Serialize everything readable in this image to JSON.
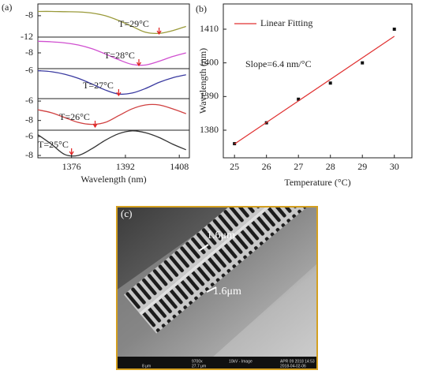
{
  "chart_data": [
    {
      "type": "line",
      "panel_label": "(a)",
      "annotation": "T=29°C",
      "x": [
        1366,
        1370,
        1374,
        1378,
        1382,
        1386,
        1390,
        1394,
        1398,
        1402,
        1406,
        1410
      ],
      "series": [
        {
          "color": "#9a9a3a",
          "values": [
            -7.2,
            -7.2,
            -7.25,
            -7.3,
            -7.5,
            -8.0,
            -8.9,
            -10.0,
            -11.1,
            -11.3,
            -10.8,
            -10.0
          ]
        }
      ],
      "marker_x": 1402,
      "ylim": [
        -12,
        -5.8
      ],
      "yticks": [
        -8,
        -12
      ]
    },
    {
      "type": "line",
      "annotation": "T=28°C",
      "x": [
        1366,
        1370,
        1374,
        1378,
        1382,
        1386,
        1390,
        1394,
        1398,
        1402,
        1406,
        1410
      ],
      "series": [
        {
          "color": "#d050d0",
          "values": [
            -5.8,
            -5.9,
            -6.1,
            -6.5,
            -7.2,
            -8.2,
            -9.3,
            -10.2,
            -10.3,
            -9.6,
            -8.7,
            -8.0
          ]
        }
      ],
      "marker_x": 1396,
      "ylim": [
        -11,
        -5
      ],
      "yticks": [
        -8
      ]
    },
    {
      "type": "line",
      "annotation": "T=27°C",
      "x": [
        1366,
        1370,
        1374,
        1378,
        1382,
        1386,
        1390,
        1394,
        1398,
        1402,
        1406,
        1410
      ],
      "series": [
        {
          "color": "#3a3aa0",
          "values": [
            -6.0,
            -6.2,
            -6.7,
            -7.5,
            -8.6,
            -9.8,
            -10.6,
            -10.4,
            -9.5,
            -8.3,
            -7.4,
            -6.8
          ]
        }
      ],
      "marker_x": 1390,
      "ylim": [
        -11.5,
        -5.6
      ],
      "yticks": [
        -6
      ]
    },
    {
      "type": "line",
      "annotation": "T=26°C",
      "x": [
        1366,
        1370,
        1374,
        1378,
        1382,
        1386,
        1390,
        1394,
        1398,
        1402,
        1406,
        1410
      ],
      "series": [
        {
          "color": "#d04040",
          "values": [
            -6.9,
            -7.2,
            -7.7,
            -8.2,
            -8.4,
            -8.2,
            -7.5,
            -6.8,
            -6.4,
            -6.4,
            -6.8,
            -7.3
          ]
        }
      ],
      "marker_x": 1383,
      "ylim": [
        -9,
        -5.75
      ],
      "yticks": [
        -6,
        -8
      ]
    },
    {
      "type": "line",
      "annotation": "T=25°C",
      "x": [
        1366,
        1370,
        1374,
        1378,
        1382,
        1386,
        1390,
        1394,
        1398,
        1402,
        1406,
        1410
      ],
      "series": [
        {
          "color": "#333333",
          "values": [
            -5.8,
            -6.8,
            -7.9,
            -8.0,
            -7.3,
            -6.4,
            -5.7,
            -5.4,
            -5.6,
            -6.1,
            -6.8,
            -7.4
          ]
        }
      ],
      "marker_x": 1376,
      "ylim": [
        -8.25,
        -5.33
      ],
      "yticks": [
        -6,
        -8
      ],
      "xlim": [
        1366,
        1411
      ],
      "xticks": [
        1376,
        1392,
        1408
      ],
      "x_label": "Wavelength (nm)"
    },
    {
      "type": "scatter",
      "panel_label": "(b)",
      "x_label": "Temperature (°C)",
      "y_label": "Wavelength (nm)",
      "annotation": "Slope=6.4 nm/°C",
      "legend": "upper left",
      "series": [
        {
          "color": "#111111",
          "x": [
            25,
            26,
            27,
            28,
            29,
            30
          ],
          "values": [
            1376,
            1382.2,
            1389.2,
            1394,
            1400,
            1410
          ]
        },
        {
          "name": "Linear Fitting",
          "color": "#e03030",
          "mode": "line",
          "x": [
            25,
            30
          ],
          "values": [
            1375.9,
            1407.9
          ]
        }
      ],
      "xlim": [
        24.65,
        30.55
      ],
      "xticks": [
        25,
        26,
        27,
        28,
        29,
        30
      ],
      "ylim": [
        1371.8,
        1417.5
      ],
      "yticks": [
        1380,
        1390,
        1400,
        1410
      ]
    }
  ],
  "image": {
    "panel_label": "(c)",
    "scale_labels": [
      "1.6μm",
      "1.6μm"
    ],
    "status_bar": [
      "8 μm",
      "9700x",
      "10kV - Image",
      "APR 09 2018 14:53",
      "27.7 μm",
      "2018-04-02-06"
    ]
  }
}
